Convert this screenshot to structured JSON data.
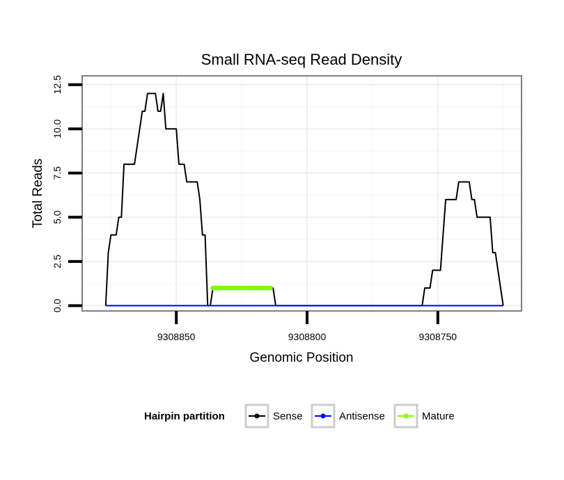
{
  "chart_data": {
    "type": "line",
    "title": "Small RNA-seq Read Density",
    "xlabel": "Genomic Position",
    "ylabel": "Total Reads",
    "xlim": [
      9308886,
      9308718
    ],
    "ylim": [
      -0.3,
      13.0
    ],
    "x_ticks": [
      9308850,
      9308800,
      9308750
    ],
    "x_tick_labels": [
      "9308850",
      "9308800",
      "9308750"
    ],
    "y_ticks": [
      0,
      2.5,
      5,
      7.5,
      10,
      12.5
    ],
    "y_tick_labels": [
      "0.0",
      "2.5",
      "5.0",
      "7.5",
      "10.0",
      "12.5"
    ],
    "grid": true,
    "legend": {
      "title": "Hairpin partition",
      "position": "bottom",
      "entries": [
        {
          "label": "Sense",
          "color": "#000000"
        },
        {
          "label": "Antisense",
          "color": "#0000ff"
        },
        {
          "label": "Mature",
          "color": "#7fff00"
        }
      ]
    },
    "series": [
      {
        "name": "Sense",
        "color": "#000000",
        "points": [
          [
            9308877,
            0
          ],
          [
            9308876,
            3
          ],
          [
            9308875,
            4
          ],
          [
            9308874,
            4
          ],
          [
            9308873,
            4
          ],
          [
            9308872,
            5
          ],
          [
            9308871,
            5
          ],
          [
            9308870,
            8
          ],
          [
            9308869,
            8
          ],
          [
            9308868,
            8
          ],
          [
            9308867,
            8
          ],
          [
            9308866,
            8
          ],
          [
            9308865,
            9
          ],
          [
            9308864,
            10
          ],
          [
            9308863,
            11
          ],
          [
            9308862,
            11
          ],
          [
            9308861,
            12
          ],
          [
            9308860,
            12
          ],
          [
            9308859,
            12
          ],
          [
            9308858,
            12
          ],
          [
            9308857,
            11
          ],
          [
            9308856,
            11
          ],
          [
            9308855,
            12
          ],
          [
            9308854,
            10
          ],
          [
            9308853,
            10
          ],
          [
            9308852,
            10
          ],
          [
            9308851,
            10
          ],
          [
            9308850,
            10
          ],
          [
            9308849,
            8
          ],
          [
            9308848,
            8
          ],
          [
            9308847,
            8
          ],
          [
            9308846,
            7
          ],
          [
            9308845,
            7
          ],
          [
            9308844,
            7
          ],
          [
            9308843,
            7
          ],
          [
            9308842,
            7
          ],
          [
            9308841,
            6
          ],
          [
            9308840,
            4
          ],
          [
            9308839,
            4
          ],
          [
            9308838,
            0
          ],
          [
            9308837,
            0
          ],
          [
            9308836,
            1
          ],
          [
            9308835,
            1
          ],
          [
            9308834,
            1
          ],
          [
            9308833,
            1
          ],
          [
            9308832,
            1
          ],
          [
            9308831,
            1
          ],
          [
            9308830,
            1
          ],
          [
            9308829,
            1
          ],
          [
            9308828,
            1
          ],
          [
            9308827,
            1
          ],
          [
            9308826,
            1
          ],
          [
            9308825,
            1
          ],
          [
            9308824,
            1
          ],
          [
            9308823,
            1
          ],
          [
            9308822,
            1
          ],
          [
            9308821,
            1
          ],
          [
            9308820,
            1
          ],
          [
            9308819,
            1
          ],
          [
            9308818,
            1
          ],
          [
            9308817,
            1
          ],
          [
            9308816,
            1
          ],
          [
            9308815,
            1
          ],
          [
            9308814,
            1
          ],
          [
            9308813,
            1
          ],
          [
            9308812,
            0
          ],
          [
            9308800,
            0
          ],
          [
            9308790,
            0
          ],
          [
            9308780,
            0
          ],
          [
            9308770,
            0
          ],
          [
            9308756,
            0
          ],
          [
            9308755,
            1
          ],
          [
            9308754,
            1
          ],
          [
            9308753,
            1
          ],
          [
            9308752,
            2
          ],
          [
            9308751,
            2
          ],
          [
            9308750,
            2
          ],
          [
            9308749,
            2
          ],
          [
            9308748,
            4
          ],
          [
            9308747,
            6
          ],
          [
            9308746,
            6
          ],
          [
            9308745,
            6
          ],
          [
            9308744,
            6
          ],
          [
            9308743,
            6
          ],
          [
            9308742,
            7
          ],
          [
            9308741,
            7
          ],
          [
            9308740,
            7
          ],
          [
            9308739,
            7
          ],
          [
            9308738,
            7
          ],
          [
            9308737,
            6
          ],
          [
            9308736,
            6
          ],
          [
            9308735,
            5
          ],
          [
            9308734,
            5
          ],
          [
            9308733,
            5
          ],
          [
            9308732,
            5
          ],
          [
            9308731,
            5
          ],
          [
            9308730,
            5
          ],
          [
            9308729,
            3
          ],
          [
            9308728,
            3
          ],
          [
            9308727,
            2
          ],
          [
            9308726,
            1
          ],
          [
            9308725,
            0
          ]
        ]
      },
      {
        "name": "Antisense",
        "color": "#0000ff",
        "points": [
          [
            9308877,
            0
          ],
          [
            9308725,
            0
          ]
        ]
      },
      {
        "name": "Mature",
        "color": "#7fff00",
        "points": [
          [
            9308836,
            1
          ],
          [
            9308835,
            1
          ],
          [
            9308834,
            1
          ],
          [
            9308833,
            1
          ],
          [
            9308832,
            1
          ],
          [
            9308831,
            1
          ],
          [
            9308830,
            1
          ],
          [
            9308829,
            1
          ],
          [
            9308828,
            1
          ],
          [
            9308827,
            1
          ],
          [
            9308826,
            1
          ],
          [
            9308825,
            1
          ],
          [
            9308824,
            1
          ],
          [
            9308823,
            1
          ],
          [
            9308822,
            1
          ],
          [
            9308821,
            1
          ],
          [
            9308820,
            1
          ],
          [
            9308819,
            1
          ],
          [
            9308818,
            1
          ],
          [
            9308817,
            1
          ],
          [
            9308816,
            1
          ],
          [
            9308815,
            1
          ],
          [
            9308814,
            1
          ]
        ],
        "markers": true
      }
    ]
  }
}
